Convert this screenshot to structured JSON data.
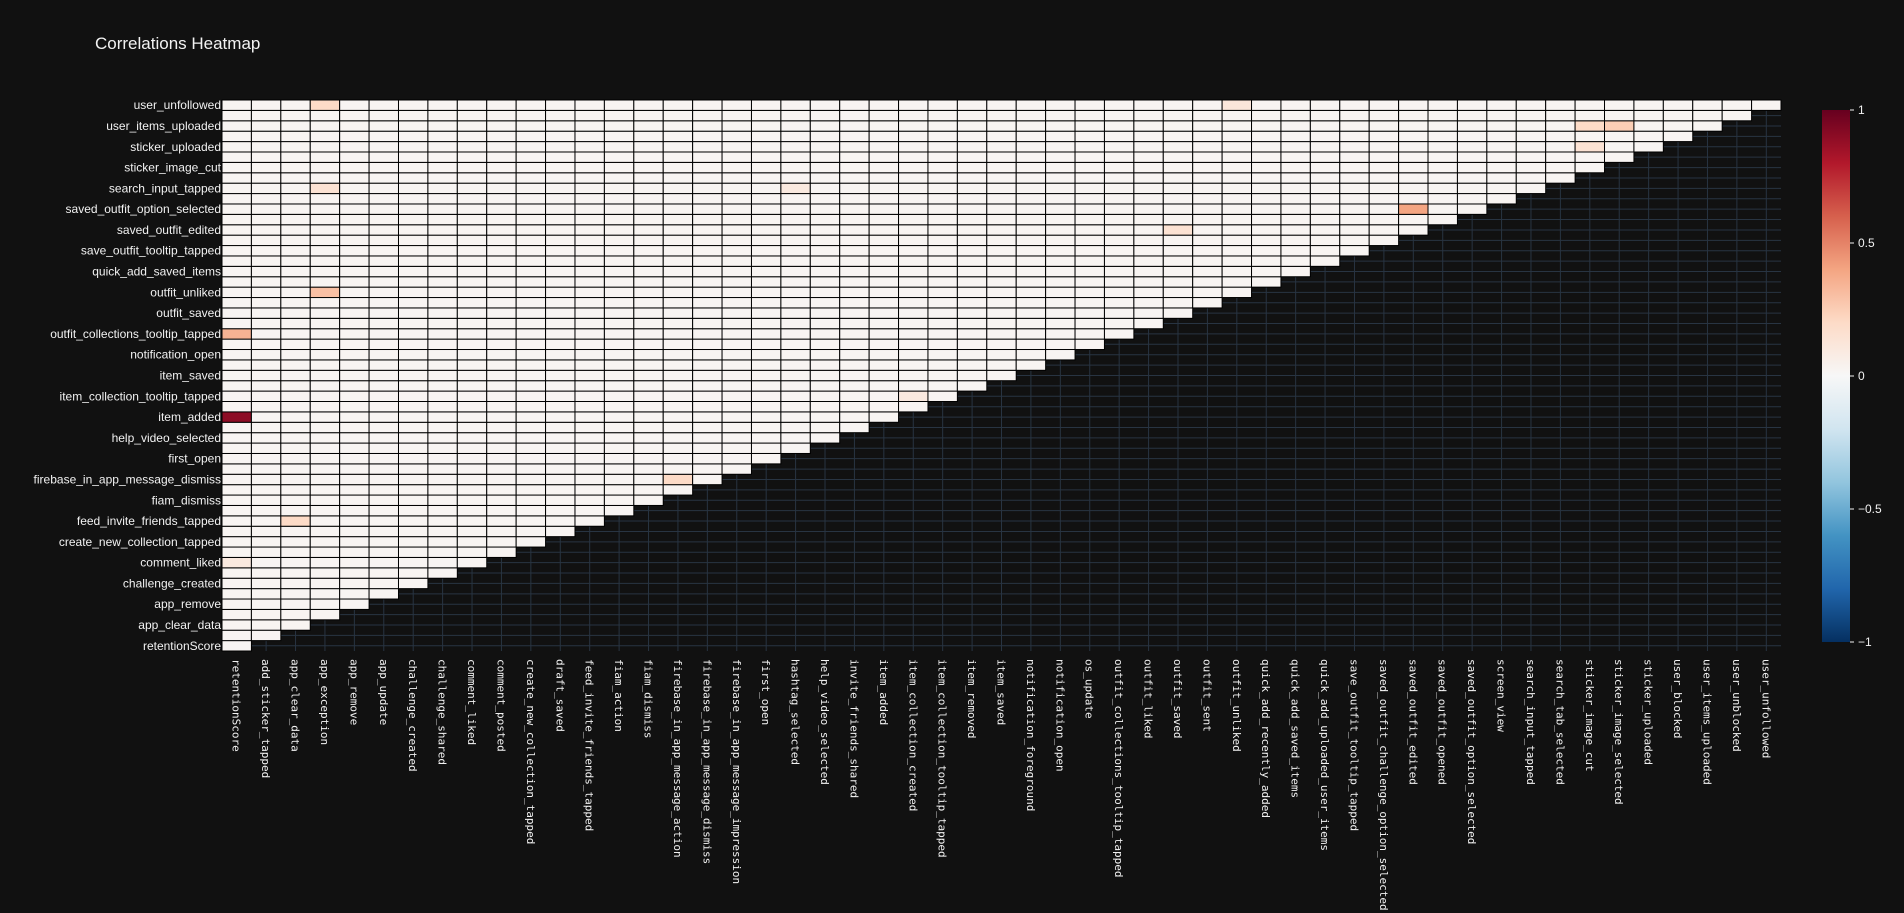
{
  "chart_data": {
    "type": "heatmap",
    "title": "Correlations Heatmap",
    "variables": [
      "retentionScore",
      "add_sticker_tapped",
      "app_clear_data",
      "app_exception",
      "app_remove",
      "app_update",
      "challenge_created",
      "challenge_shared",
      "comment_liked",
      "comment_posted",
      "create_new_collection_tapped",
      "draft_saved",
      "feed_invite_friends_tapped",
      "fiam_action",
      "fiam_dismiss",
      "firebase_in_app_message_action",
      "firebase_in_app_message_dismiss",
      "firebase_in_app_message_impression",
      "first_open",
      "hashtag_selected",
      "help_video_selected",
      "invite_friends_shared",
      "item_added",
      "item_collection_created",
      "item_collection_tooltip_tapped",
      "item_removed",
      "item_saved",
      "notification_foreground",
      "notification_open",
      "os_update",
      "outfit_collections_tooltip_tapped",
      "outfit_liked",
      "outfit_saved",
      "outfit_sent",
      "outfit_unliked",
      "quick_add_recently_added",
      "quick_add_saved_items",
      "quick_add_uploaded_user_items",
      "save_outfit_tooltip_tapped",
      "saved_outfit_challenge_option_selected",
      "saved_outfit_edited",
      "saved_outfit_opened",
      "saved_outfit_option_selected",
      "screen_view",
      "search_input_tapped",
      "search_tab_selected",
      "sticker_image_cut",
      "sticker_image_selected",
      "sticker_uploaded",
      "user_blocked",
      "user_items_uploaded",
      "user_unblocked",
      "user_unfollowed"
    ],
    "y_tick_labels": [
      "user_unfollowed",
      "user_items_uploaded",
      "sticker_uploaded",
      "sticker_image_cut",
      "search_input_tapped",
      "saved_outfit_option_selected",
      "saved_outfit_edited",
      "save_outfit_tooltip_tapped",
      "quick_add_saved_items",
      "outfit_unliked",
      "outfit_saved",
      "outfit_collections_tooltip_tapped",
      "notification_open",
      "item_saved",
      "item_collection_tooltip_tapped",
      "item_added",
      "help_video_selected",
      "first_open",
      "firebase_in_app_message_dismiss",
      "fiam_dismiss",
      "feed_invite_friends_tapped",
      "create_new_collection_tapped",
      "comment_liked",
      "challenge_created",
      "app_remove",
      "app_clear_data",
      "retentionScore"
    ],
    "masked": "upper triangle (row index < column index)",
    "default_value": 0.02,
    "notable_values": [
      {
        "row": "item_added",
        "col": "retentionScore",
        "value": 0.9
      },
      {
        "row": "outfit_collections_tooltip_tapped",
        "col": "retentionScore",
        "value": 0.35
      },
      {
        "row": "outfit_unliked",
        "col": "app_exception",
        "value": 0.3
      },
      {
        "row": "user_unfollowed",
        "col": "app_exception",
        "value": 0.2
      },
      {
        "row": "search_input_tapped",
        "col": "app_exception",
        "value": 0.15
      },
      {
        "row": "feed_invite_friends_tapped",
        "col": "app_clear_data",
        "value": 0.2
      },
      {
        "row": "saved_outfit_option_selected",
        "col": "saved_outfit_edited",
        "value": 0.4
      },
      {
        "row": "user_items_uploaded",
        "col": "sticker_image_cut",
        "value": 0.2
      },
      {
        "row": "user_items_uploaded",
        "col": "sticker_image_selected",
        "value": 0.25
      },
      {
        "row": "sticker_uploaded",
        "col": "sticker_image_cut",
        "value": 0.15
      },
      {
        "row": "user_unfollowed",
        "col": "outfit_unliked",
        "value": 0.12
      },
      {
        "row": "saved_outfit_edited",
        "col": "outfit_saved",
        "value": 0.15
      },
      {
        "row": "item_collection_tooltip_tapped",
        "col": "item_collection_created",
        "value": 0.1
      },
      {
        "row": "firebase_in_app_message_dismiss",
        "col": "firebase_in_app_message_action",
        "value": 0.2
      },
      {
        "row": "search_input_tapped",
        "col": "hashtag_selected",
        "value": 0.1
      },
      {
        "row": "comment_liked",
        "col": "retentionScore",
        "value": 0.1
      }
    ],
    "colorscale": "RdBu reversed",
    "colorbar": {
      "range": [
        -1,
        1
      ],
      "tick_values": [
        1,
        0.5,
        0,
        -0.5,
        -1
      ],
      "tick_labels": [
        "1",
        "0.5",
        "0",
        "−0.5",
        "−1"
      ]
    },
    "colors": {
      "background": "#111111",
      "grid": "#283442",
      "cell_border": "#000000"
    },
    "xlabel": "",
    "ylabel": ""
  }
}
